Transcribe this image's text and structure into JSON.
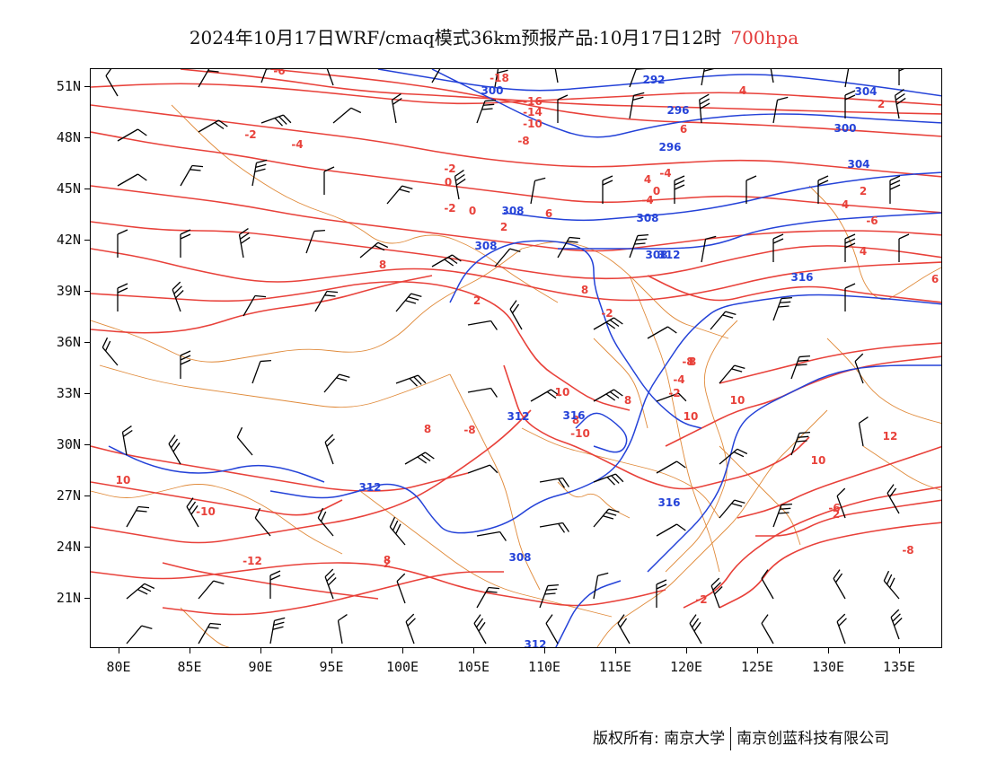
{
  "title": {
    "main": "2024年10月17日WRF/cmaq模式36km预报产品:10月17日12时",
    "level": "700hpa"
  },
  "axes": {
    "lat_labels": [
      "51N",
      "48N",
      "45N",
      "42N",
      "39N",
      "36N",
      "33N",
      "30N",
      "27N",
      "24N",
      "21N"
    ],
    "lon_labels": [
      "80E",
      "85E",
      "90E",
      "95E",
      "100E",
      "105E",
      "110E",
      "115E",
      "120E",
      "125E",
      "130E",
      "135E"
    ]
  },
  "map": {
    "lon_range": [
      78,
      138
    ],
    "lat_range": [
      18,
      52
    ],
    "colors": {
      "temperature": "#e8413a",
      "height": "#2442d8",
      "boundary": "#e08a3a",
      "wind": "#000000"
    },
    "temperature_labels": [
      "-6",
      "-18",
      "-16",
      "-14",
      "-10",
      "-8",
      "-2",
      "-4",
      "-2",
      "0",
      "2",
      "-2",
      "0",
      "-2",
      "4",
      "6",
      "4",
      "2",
      "2",
      "4",
      "0",
      "-4",
      "-4",
      "2",
      "6",
      "8",
      "4",
      "6",
      "8",
      "10",
      "8",
      "8",
      "8",
      "8",
      "10",
      "10",
      "10",
      "12",
      "-8",
      "-10",
      "-6",
      "-8",
      "-4",
      "-2",
      "-6",
      "-2",
      "2",
      "-8",
      "8",
      "10",
      "-10",
      "-12",
      "2"
    ],
    "height_labels": [
      "300",
      "292",
      "296",
      "296",
      "300",
      "304",
      "304",
      "308",
      "308",
      "308",
      "308",
      "312",
      "312",
      "316",
      "308",
      "312",
      "312",
      "316",
      "316"
    ]
  },
  "footer": {
    "copyright": "版权所有: 南京大学",
    "company": "南京创蓝科技有限公司"
  }
}
